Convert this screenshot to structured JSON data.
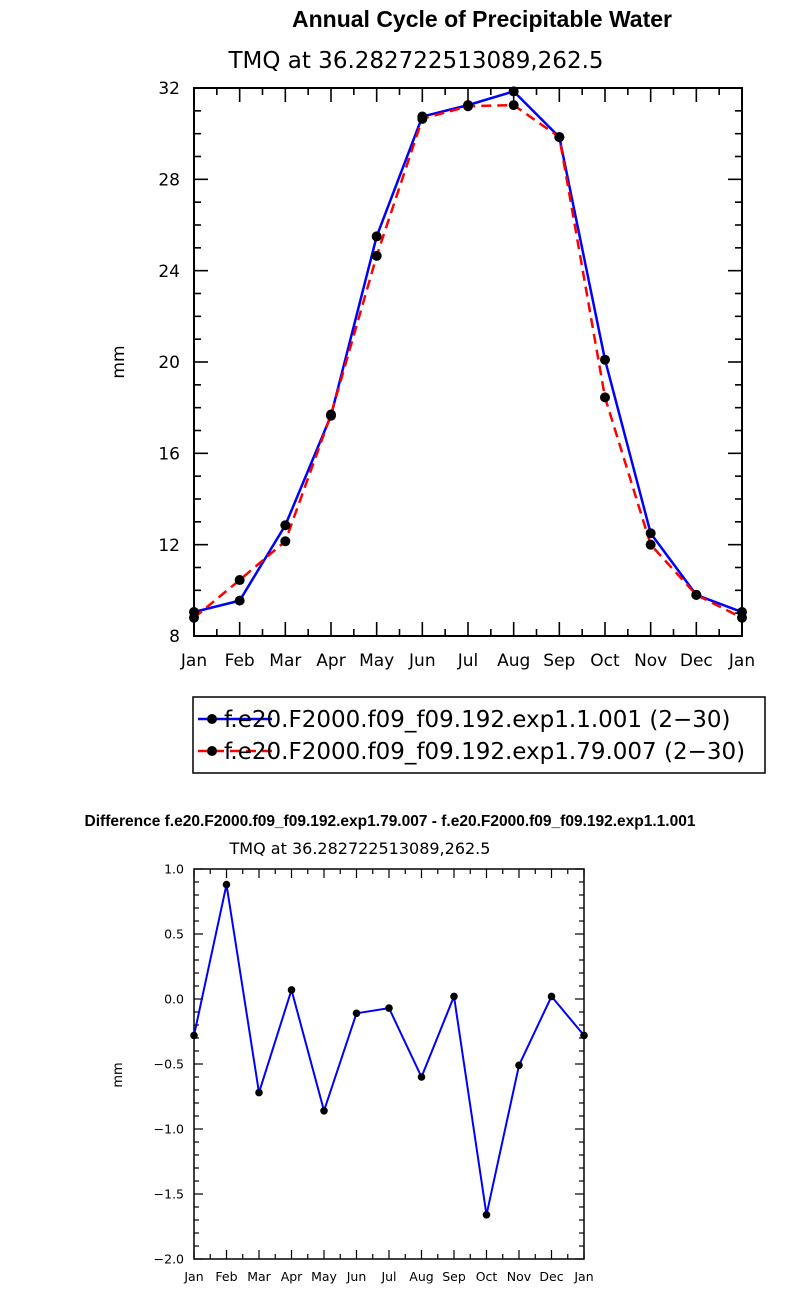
{
  "chart_data": [
    {
      "type": "line",
      "title": "Annual Cycle of Precipitable Water",
      "subtitle": "TMQ  at  36.282722513089,262.5",
      "xlabel": "",
      "ylabel": "mm",
      "categories": [
        "Jan",
        "Feb",
        "Mar",
        "Apr",
        "May",
        "Jun",
        "Jul",
        "Aug",
        "Sep",
        "Oct",
        "Nov",
        "Dec",
        "Jan"
      ],
      "ylim": [
        8,
        32
      ],
      "yticks": [
        "8",
        "12",
        "16",
        "20",
        "24",
        "28",
        "32"
      ],
      "series": [
        {
          "name": "f.e20.F2000.f09_f09.192.exp1.1.001 (2−30)",
          "color": "#0000ff",
          "dash": "solid",
          "values": [
            9.05,
            9.55,
            12.85,
            17.65,
            25.5,
            30.75,
            31.25,
            31.85,
            29.85,
            20.1,
            12.5,
            9.8,
            9.05
          ]
        },
        {
          "name": "f.e20.F2000.f09_f09.192.exp1.79.007 (2−30)",
          "color": "#ff0000",
          "dash": "dashed",
          "values": [
            8.8,
            10.45,
            12.15,
            17.7,
            24.65,
            30.65,
            31.2,
            31.25,
            29.85,
            18.45,
            12.0,
            9.8,
            8.8
          ]
        }
      ],
      "legend": "below"
    },
    {
      "type": "line",
      "title": "Difference f.e20.F2000.f09_f09.192.exp1.79.007 - f.e20.F2000.f09_f09.192.exp1.1.001",
      "subtitle": "TMQ  at  36.282722513089,262.5",
      "xlabel": "",
      "ylabel": "mm",
      "categories": [
        "Jan",
        "Feb",
        "Mar",
        "Apr",
        "May",
        "Jun",
        "Jul",
        "Aug",
        "Sep",
        "Oct",
        "Nov",
        "Dec",
        "Jan"
      ],
      "ylim": [
        -2.0,
        1.0
      ],
      "yticks": [
        "−2.0",
        "−1.5",
        "−1.0",
        "−0.5",
        "0.0",
        "0.5",
        "1.0"
      ],
      "series": [
        {
          "color": "#0000ff",
          "values": [
            -0.28,
            0.88,
            -0.72,
            0.07,
            -0.86,
            -0.11,
            -0.07,
            -0.6,
            0.02,
            -1.66,
            -0.51,
            0.02,
            -0.28
          ]
        }
      ]
    }
  ]
}
